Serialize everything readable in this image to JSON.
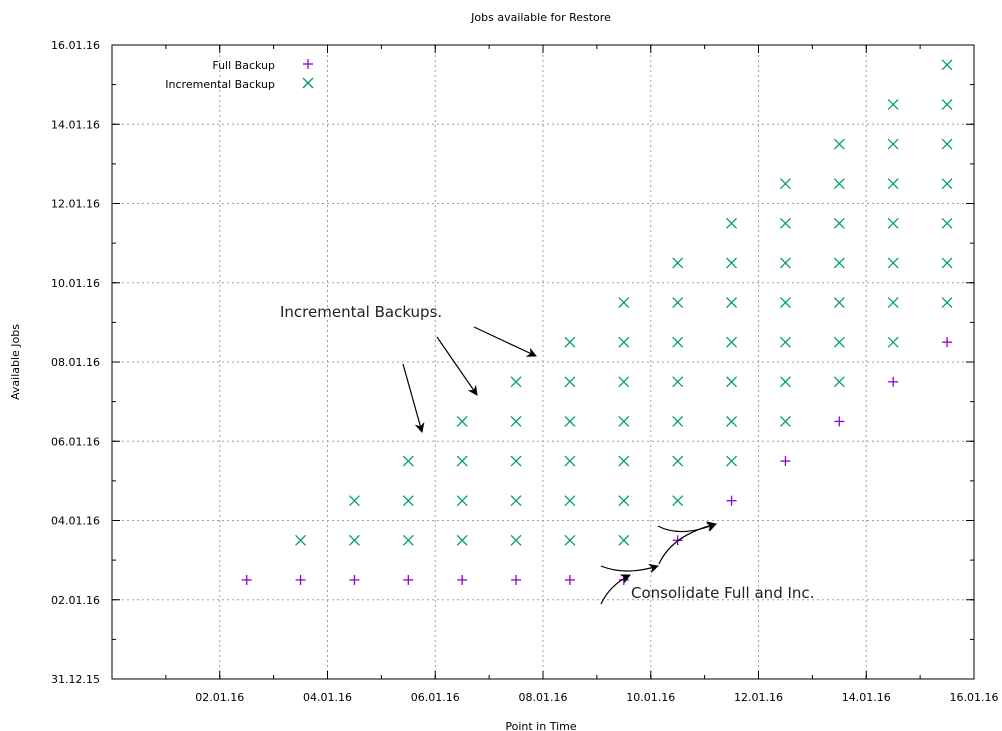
{
  "chart_data": {
    "type": "scatter",
    "title": "Jobs available for Restore",
    "xlabel": "Point in Time",
    "ylabel": "Available Jobs",
    "x_axis": {
      "min": "2015-12-31",
      "max": "2016-01-16",
      "ticks": [
        "02.01.16",
        "04.01.16",
        "06.01.16",
        "08.01.16",
        "10.01.16",
        "12.01.16",
        "14.01.16",
        "16.01.16"
      ]
    },
    "y_axis": {
      "min": "2015-12-31",
      "max": "2016-01-16",
      "ticks": [
        "31.12.15",
        "02.01.16",
        "04.01.16",
        "06.01.16",
        "08.01.16",
        "10.01.16",
        "12.01.16",
        "14.01.16",
        "16.01.16"
      ]
    },
    "grid": true,
    "legend_position": "top-left",
    "series": [
      {
        "name": "Full Backup",
        "marker": "plus",
        "color": "#9400d3",
        "points": [
          {
            "x": "2016-01-02",
            "y": "2016-01-02"
          },
          {
            "x": "2016-01-03",
            "y": "2016-01-02"
          },
          {
            "x": "2016-01-04",
            "y": "2016-01-02"
          },
          {
            "x": "2016-01-05",
            "y": "2016-01-02"
          },
          {
            "x": "2016-01-06",
            "y": "2016-01-02"
          },
          {
            "x": "2016-01-07",
            "y": "2016-01-02"
          },
          {
            "x": "2016-01-08",
            "y": "2016-01-02"
          },
          {
            "x": "2016-01-09",
            "y": "2016-01-02"
          },
          {
            "x": "2016-01-10",
            "y": "2016-01-03"
          },
          {
            "x": "2016-01-11",
            "y": "2016-01-04"
          },
          {
            "x": "2016-01-12",
            "y": "2016-01-05"
          },
          {
            "x": "2016-01-13",
            "y": "2016-01-06"
          },
          {
            "x": "2016-01-14",
            "y": "2016-01-07"
          },
          {
            "x": "2016-01-15",
            "y": "2016-01-08"
          }
        ]
      },
      {
        "name": "Incremental Backup",
        "marker": "cross",
        "color": "#009e73",
        "points": [
          {
            "x": "2016-01-03",
            "y": "2016-01-03"
          },
          {
            "x": "2016-01-04",
            "y": "2016-01-03"
          },
          {
            "x": "2016-01-04",
            "y": "2016-01-04"
          },
          {
            "x": "2016-01-05",
            "y": "2016-01-03"
          },
          {
            "x": "2016-01-05",
            "y": "2016-01-04"
          },
          {
            "x": "2016-01-05",
            "y": "2016-01-05"
          },
          {
            "x": "2016-01-06",
            "y": "2016-01-03"
          },
          {
            "x": "2016-01-06",
            "y": "2016-01-04"
          },
          {
            "x": "2016-01-06",
            "y": "2016-01-05"
          },
          {
            "x": "2016-01-06",
            "y": "2016-01-06"
          },
          {
            "x": "2016-01-07",
            "y": "2016-01-03"
          },
          {
            "x": "2016-01-07",
            "y": "2016-01-04"
          },
          {
            "x": "2016-01-07",
            "y": "2016-01-05"
          },
          {
            "x": "2016-01-07",
            "y": "2016-01-06"
          },
          {
            "x": "2016-01-07",
            "y": "2016-01-07"
          },
          {
            "x": "2016-01-08",
            "y": "2016-01-03"
          },
          {
            "x": "2016-01-08",
            "y": "2016-01-04"
          },
          {
            "x": "2016-01-08",
            "y": "2016-01-05"
          },
          {
            "x": "2016-01-08",
            "y": "2016-01-06"
          },
          {
            "x": "2016-01-08",
            "y": "2016-01-07"
          },
          {
            "x": "2016-01-08",
            "y": "2016-01-08"
          },
          {
            "x": "2016-01-09",
            "y": "2016-01-03"
          },
          {
            "x": "2016-01-09",
            "y": "2016-01-04"
          },
          {
            "x": "2016-01-09",
            "y": "2016-01-05"
          },
          {
            "x": "2016-01-09",
            "y": "2016-01-06"
          },
          {
            "x": "2016-01-09",
            "y": "2016-01-07"
          },
          {
            "x": "2016-01-09",
            "y": "2016-01-08"
          },
          {
            "x": "2016-01-09",
            "y": "2016-01-09"
          },
          {
            "x": "2016-01-10",
            "y": "2016-01-04"
          },
          {
            "x": "2016-01-10",
            "y": "2016-01-05"
          },
          {
            "x": "2016-01-10",
            "y": "2016-01-06"
          },
          {
            "x": "2016-01-10",
            "y": "2016-01-07"
          },
          {
            "x": "2016-01-10",
            "y": "2016-01-08"
          },
          {
            "x": "2016-01-10",
            "y": "2016-01-09"
          },
          {
            "x": "2016-01-10",
            "y": "2016-01-10"
          },
          {
            "x": "2016-01-11",
            "y": "2016-01-05"
          },
          {
            "x": "2016-01-11",
            "y": "2016-01-06"
          },
          {
            "x": "2016-01-11",
            "y": "2016-01-07"
          },
          {
            "x": "2016-01-11",
            "y": "2016-01-08"
          },
          {
            "x": "2016-01-11",
            "y": "2016-01-09"
          },
          {
            "x": "2016-01-11",
            "y": "2016-01-10"
          },
          {
            "x": "2016-01-11",
            "y": "2016-01-11"
          },
          {
            "x": "2016-01-12",
            "y": "2016-01-06"
          },
          {
            "x": "2016-01-12",
            "y": "2016-01-07"
          },
          {
            "x": "2016-01-12",
            "y": "2016-01-08"
          },
          {
            "x": "2016-01-12",
            "y": "2016-01-09"
          },
          {
            "x": "2016-01-12",
            "y": "2016-01-10"
          },
          {
            "x": "2016-01-12",
            "y": "2016-01-11"
          },
          {
            "x": "2016-01-12",
            "y": "2016-01-12"
          },
          {
            "x": "2016-01-13",
            "y": "2016-01-07"
          },
          {
            "x": "2016-01-13",
            "y": "2016-01-08"
          },
          {
            "x": "2016-01-13",
            "y": "2016-01-09"
          },
          {
            "x": "2016-01-13",
            "y": "2016-01-10"
          },
          {
            "x": "2016-01-13",
            "y": "2016-01-11"
          },
          {
            "x": "2016-01-13",
            "y": "2016-01-12"
          },
          {
            "x": "2016-01-13",
            "y": "2016-01-13"
          },
          {
            "x": "2016-01-14",
            "y": "2016-01-08"
          },
          {
            "x": "2016-01-14",
            "y": "2016-01-09"
          },
          {
            "x": "2016-01-14",
            "y": "2016-01-10"
          },
          {
            "x": "2016-01-14",
            "y": "2016-01-11"
          },
          {
            "x": "2016-01-14",
            "y": "2016-01-12"
          },
          {
            "x": "2016-01-14",
            "y": "2016-01-13"
          },
          {
            "x": "2016-01-14",
            "y": "2016-01-14"
          },
          {
            "x": "2016-01-15",
            "y": "2016-01-09"
          },
          {
            "x": "2016-01-15",
            "y": "2016-01-10"
          },
          {
            "x": "2016-01-15",
            "y": "2016-01-11"
          },
          {
            "x": "2016-01-15",
            "y": "2016-01-12"
          },
          {
            "x": "2016-01-15",
            "y": "2016-01-13"
          },
          {
            "x": "2016-01-15",
            "y": "2016-01-14"
          },
          {
            "x": "2016-01-15",
            "y": "2016-01-15"
          }
        ]
      }
    ],
    "annotations": [
      {
        "text": "Incremental Backups.",
        "arrows_to": [
          {
            "x": "2016-01-06",
            "y": "2016-01-06"
          },
          {
            "x": "2016-01-07",
            "y": "2016-01-07"
          },
          {
            "x": "2016-01-08",
            "y": "2016-01-08"
          }
        ]
      },
      {
        "text": "Consolidate Full and Inc.",
        "arrows_to": [
          {
            "x": "2016-01-10",
            "y": "2016-01-03"
          },
          {
            "x": "2016-01-11",
            "y": "2016-01-04"
          }
        ]
      }
    ]
  }
}
